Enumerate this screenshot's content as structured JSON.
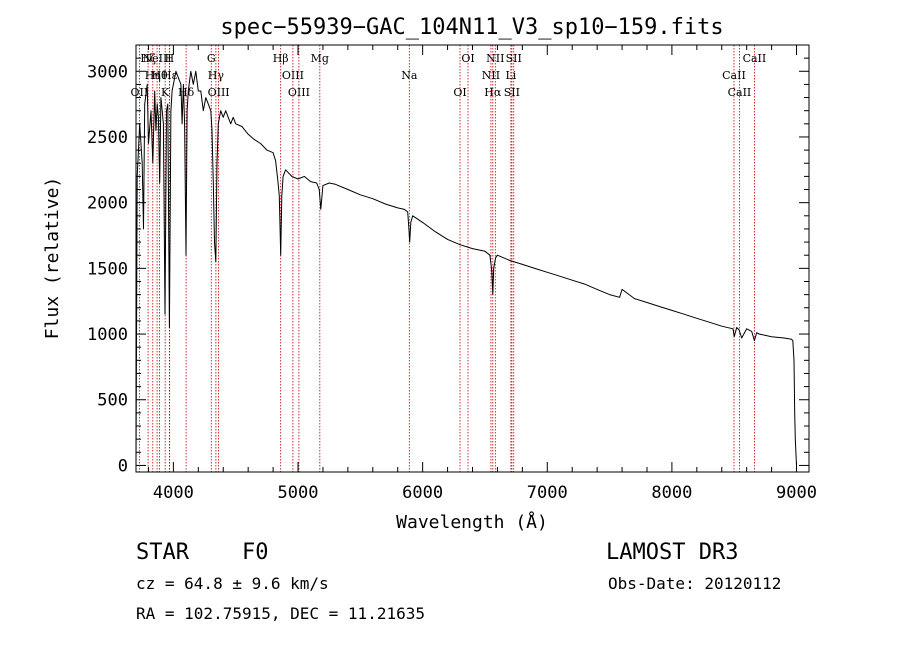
{
  "chart_data": {
    "type": "line",
    "title": "spec−55939−GAC_104N11_V3_sp10−159.fits",
    "xlabel": "Wavelength (Å)",
    "ylabel": "Flux (relative)",
    "xlim": [
      3700,
      9100
    ],
    "ylim": [
      -50,
      3200
    ],
    "xticks": [
      4000,
      5000,
      6000,
      7000,
      8000,
      9000
    ],
    "yticks": [
      0,
      500,
      1000,
      1500,
      2000,
      2500,
      3000
    ],
    "series": [
      {
        "name": "flux",
        "x": [
          3700,
          3710,
          3730,
          3750,
          3760,
          3770,
          3790,
          3800,
          3820,
          3835,
          3850,
          3860,
          3870,
          3880,
          3890,
          3900,
          3910,
          3920,
          3933,
          3945,
          3955,
          3968,
          3980,
          3990,
          4000,
          4020,
          4040,
          4060,
          4070,
          4080,
          4090,
          4101,
          4110,
          4120,
          4140,
          4160,
          4180,
          4200,
          4220,
          4240,
          4260,
          4280,
          4300,
          4310,
          4320,
          4330,
          4340,
          4350,
          4360,
          4380,
          4400,
          4420,
          4440,
          4460,
          4480,
          4500,
          4550,
          4600,
          4650,
          4700,
          4750,
          4800,
          4820,
          4840,
          4850,
          4861,
          4870,
          4880,
          4900,
          4950,
          5000,
          5050,
          5100,
          5150,
          5170,
          5183,
          5200,
          5250,
          5300,
          5400,
          5500,
          5600,
          5700,
          5800,
          5850,
          5880,
          5890,
          5896,
          5905,
          5920,
          6000,
          6100,
          6200,
          6300,
          6400,
          6500,
          6540,
          6555,
          6563,
          6570,
          6585,
          6600,
          6700,
          6800,
          6900,
          7000,
          7100,
          7200,
          7300,
          7400,
          7500,
          7580,
          7600,
          7700,
          7800,
          7900,
          8000,
          8100,
          8200,
          8300,
          8400,
          8490,
          8500,
          8520,
          8540,
          8560,
          8600,
          8640,
          8662,
          8680,
          8700,
          8800,
          8900,
          8960,
          8970,
          8980,
          8985,
          8990,
          9000
        ],
        "values": [
          0,
          2200,
          2600,
          2300,
          1800,
          2750,
          2900,
          2450,
          2700,
          2300,
          2850,
          2550,
          2750,
          2650,
          2150,
          2800,
          2700,
          2600,
          1150,
          2700,
          2750,
          1050,
          2700,
          2850,
          2900,
          3000,
          2950,
          2900,
          2600,
          2900,
          2600,
          1600,
          2700,
          2850,
          3000,
          2900,
          3000,
          2850,
          2850,
          2700,
          2800,
          2750,
          2700,
          2550,
          2150,
          1700,
          1550,
          2300,
          2600,
          2700,
          2650,
          2700,
          2650,
          2600,
          2650,
          2600,
          2580,
          2520,
          2480,
          2450,
          2400,
          2380,
          2320,
          2150,
          2050,
          1600,
          2050,
          2200,
          2250,
          2200,
          2180,
          2200,
          2160,
          2150,
          2100,
          1950,
          2130,
          2150,
          2140,
          2100,
          2060,
          2030,
          1990,
          1960,
          1950,
          1930,
          1800,
          1700,
          1850,
          1900,
          1850,
          1780,
          1720,
          1680,
          1650,
          1630,
          1600,
          1480,
          1300,
          1500,
          1580,
          1600,
          1560,
          1530,
          1500,
          1470,
          1440,
          1410,
          1380,
          1340,
          1300,
          1280,
          1340,
          1270,
          1240,
          1210,
          1180,
          1150,
          1120,
          1090,
          1060,
          1040,
          980,
          1050,
          1030,
          970,
          1040,
          1020,
          950,
          1010,
          1000,
          980,
          970,
          960,
          950,
          800,
          400,
          200,
          0
        ]
      }
    ],
    "lines": [
      {
        "x": 3797,
        "label": "Hζ"
      },
      {
        "x": 3835,
        "label": "Hη"
      },
      {
        "x": 3727,
        "label": "OII"
      },
      {
        "x": 3869,
        "label": "NeIII"
      },
      {
        "x": 3889,
        "label": "Hθ"
      },
      {
        "x": 3934,
        "label": "K"
      },
      {
        "x": 3968,
        "label": "H"
      },
      {
        "x": 3970,
        "label": "Hε"
      },
      {
        "x": 4102,
        "label": "Hδ"
      },
      {
        "x": 4304,
        "label": "G"
      },
      {
        "x": 4341,
        "label": "Hγ"
      },
      {
        "x": 4363,
        "label": "OIII"
      },
      {
        "x": 4861,
        "label": "Hβ"
      },
      {
        "x": 4959,
        "label": "OIII"
      },
      {
        "x": 5007,
        "label": "OIII"
      },
      {
        "x": 5175,
        "label": "Mg"
      },
      {
        "x": 5893,
        "label": "Na"
      },
      {
        "x": 6300,
        "label": "OI"
      },
      {
        "x": 6364,
        "label": "OI"
      },
      {
        "x": 6548,
        "label": "NII"
      },
      {
        "x": 6563,
        "label": "Hα"
      },
      {
        "x": 6583,
        "label": "NII"
      },
      {
        "x": 6708,
        "label": "Li"
      },
      {
        "x": 6716,
        "label": "SII"
      },
      {
        "x": 6731,
        "label": "SII"
      },
      {
        "x": 8498,
        "label": "CaII"
      },
      {
        "x": 8542,
        "label": "CaII"
      },
      {
        "x": 8662,
        "label": "CaII"
      }
    ]
  },
  "info": {
    "object_type": "STAR",
    "subclass": "F0",
    "survey": "LAMOST DR3",
    "cz": "cz = 64.8 ± 9.6 km/s",
    "obs_date": "Obs-Date: 20120112",
    "coords": "RA = 102.75915, DEC =  11.21635"
  }
}
